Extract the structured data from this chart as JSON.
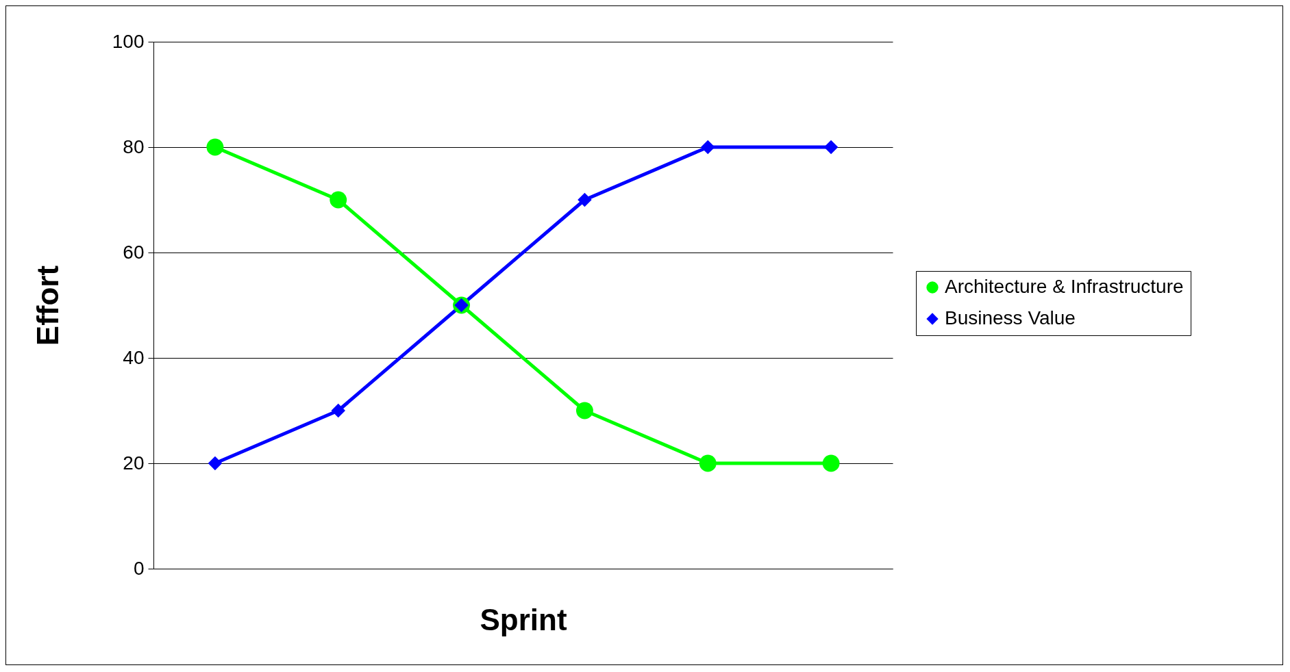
{
  "chart_data": {
    "type": "line",
    "xlabel": "Sprint",
    "ylabel": "Effort",
    "categories": [
      null,
      null,
      null,
      null,
      null,
      null
    ],
    "series": [
      {
        "name": "Architecture & Infrastructure",
        "color": "#00ff00",
        "marker": "circle",
        "values": [
          80,
          70,
          50,
          30,
          20,
          20
        ]
      },
      {
        "name": "Business Value",
        "color": "#0000ff",
        "marker": "diamond",
        "values": [
          20,
          30,
          50,
          70,
          80,
          80
        ]
      }
    ],
    "ylim": [
      0,
      100
    ],
    "yticks": [
      0,
      20,
      40,
      60,
      80,
      100
    ],
    "grid": "y",
    "legend": "right"
  }
}
